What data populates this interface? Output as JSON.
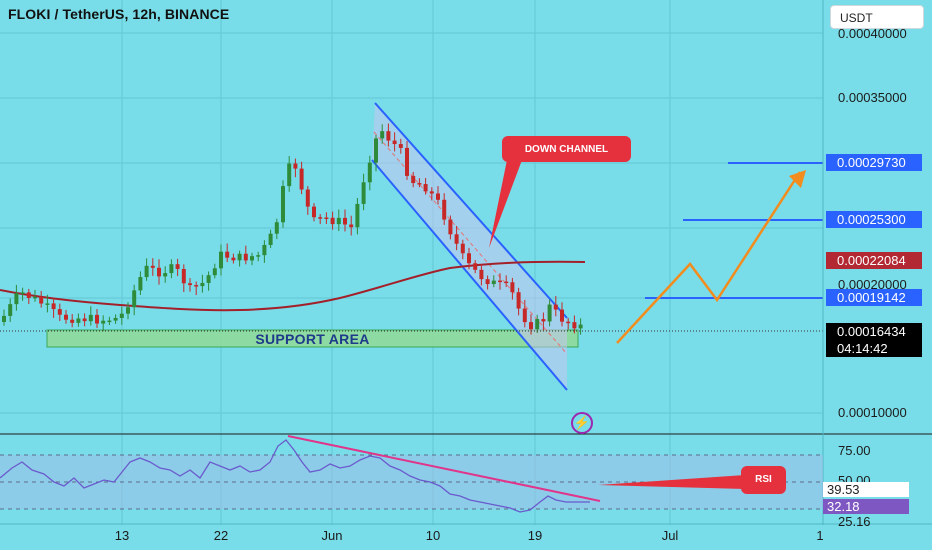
{
  "header": {
    "title": "FLOKI / TetherUS, 12h, BINANCE",
    "currency_button": "USDT"
  },
  "price_axis": {
    "labels": [
      "0.00040000",
      "0.00035000",
      "0.00020000",
      "0.00010000"
    ]
  },
  "price_tags": {
    "target3": "0.00029730",
    "target2": "0.00025300",
    "ma": "0.00022084",
    "target1": "0.00019142",
    "last": "0.00016434",
    "countdown": "04:14:42"
  },
  "rsi_axis": {
    "labels": [
      "75.00",
      "50.00",
      "25.16"
    ],
    "ma_value": "39.53",
    "rsi_value": "32.18"
  },
  "time_axis": {
    "labels": [
      "13",
      "22",
      "Jun",
      "10",
      "19",
      "Jul",
      "1"
    ]
  },
  "annotations": {
    "down_channel": "DOWN CHANNEL",
    "support_area": "SUPPORT AREA",
    "rsi_label": "RSI"
  },
  "colors": {
    "background": "#78DDE8",
    "candle_up": "#2e8b3a",
    "candle_down": "#c62828",
    "channel": "#2962ff",
    "moving_average": "#b22833",
    "projection": "#f28c1e",
    "callout": "#e5303d",
    "rsi_line": "#6a5acd",
    "divergence": "#e0358a"
  },
  "icons": {
    "lightning": "lightning-icon"
  }
}
